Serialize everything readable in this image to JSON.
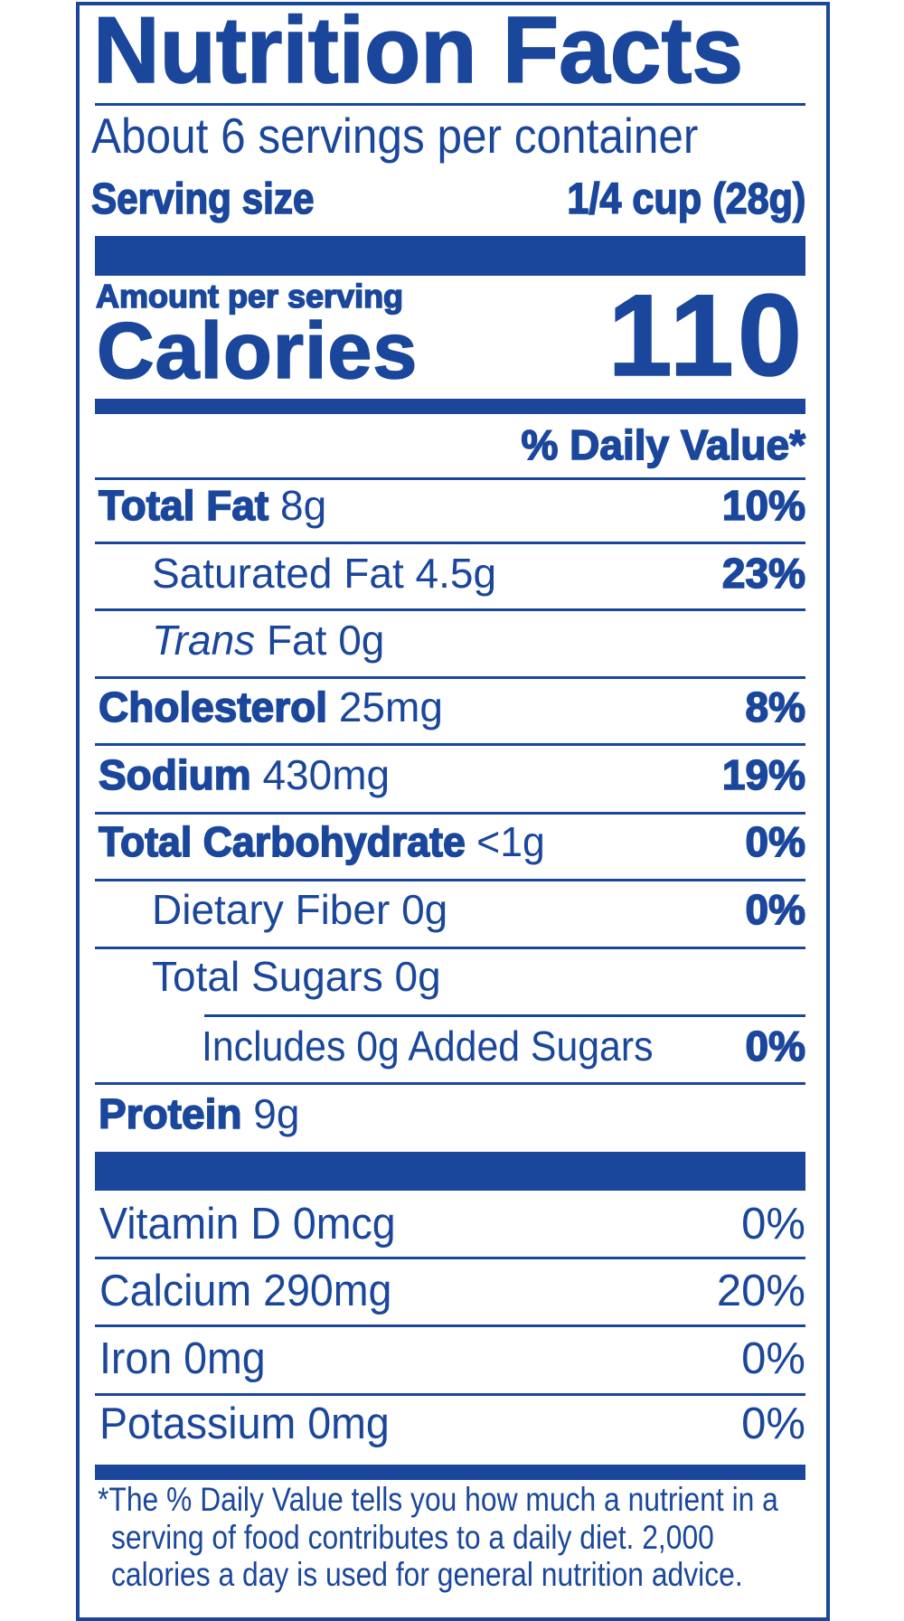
{
  "title": "Nutrition Facts",
  "servings_per_container": "About 6 servings per container",
  "serving_size": {
    "label": "Serving size",
    "value": "1/4 cup (28g)"
  },
  "amount_per_serving": "Amount per serving",
  "calories": {
    "label": "Calories",
    "value": "110"
  },
  "daily_value_header": "% Daily Value*",
  "nutrients": [
    {
      "name": "Total Fat",
      "amount": "8g",
      "dv": "10%"
    },
    {
      "name": "Saturated Fat",
      "amount": "4.5g",
      "dv": "23%"
    },
    {
      "name": "Trans",
      "name_suffix": "Fat",
      "amount": "0g",
      "dv": ""
    },
    {
      "name": "Cholesterol",
      "amount": "25mg",
      "dv": "8%"
    },
    {
      "name": "Sodium",
      "amount": "430mg",
      "dv": "19%"
    },
    {
      "name": "Total Carbohydrate",
      "amount": "<1g",
      "dv": "0%"
    },
    {
      "name": "Dietary Fiber",
      "amount": "0g",
      "dv": "0%"
    },
    {
      "name": "Total Sugars",
      "amount": "0g",
      "dv": ""
    },
    {
      "name": "Includes 0g Added Sugars",
      "amount": "",
      "dv": "0%"
    },
    {
      "name": "Protein",
      "amount": "9g",
      "dv": ""
    }
  ],
  "vitamins": [
    {
      "label": "Vitamin D 0mcg",
      "dv": "0%"
    },
    {
      "label": "Calcium 290mg",
      "dv": "20%"
    },
    {
      "label": "Iron 0mg",
      "dv": "0%"
    },
    {
      "label": "Potassium 0mg",
      "dv": "0%"
    }
  ],
  "footnote": [
    "*The % Daily Value tells you how much a nutrient in a",
    "serving of food contributes to a daily diet. 2,000",
    "calories a day is used for general nutrition advice."
  ],
  "colors": {
    "ink": "#1a479c",
    "background": "#ffffff"
  }
}
